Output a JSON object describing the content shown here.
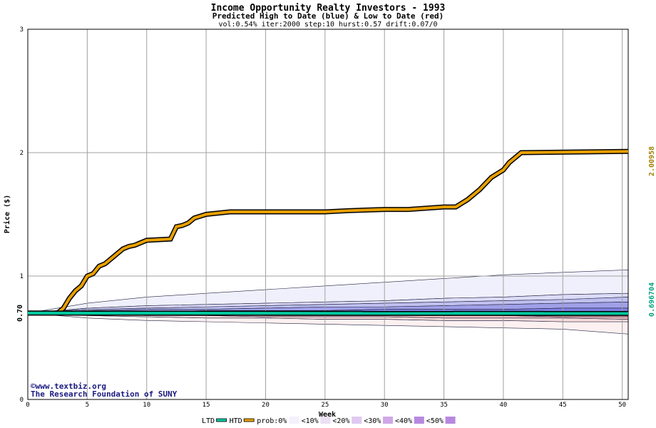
{
  "chart_data": {
    "type": "line",
    "title": "Income Opportunity Realty Investors - 1993",
    "subtitle": "Predicted High to Date (blue) &  Low to Date (red)",
    "params": "vol:0.54% iter:2000 step:10 hurst:0.57 drift:0.07/0",
    "xlabel": "Week",
    "ylabel": "Price ($)",
    "xlim": [
      0,
      50.5
    ],
    "ylim": [
      0,
      3
    ],
    "x_ticks": [
      0,
      5,
      10,
      15,
      20,
      25,
      30,
      35,
      40,
      45,
      50
    ],
    "y_ticks": [
      0,
      1,
      2,
      3
    ],
    "grid": true,
    "start_label": "0.70",
    "right_labels": {
      "top": "2.00958",
      "bottom": "0.696704"
    },
    "credits": [
      "©www.textbiz.org",
      "The Research Foundation of SUNY"
    ],
    "legend": {
      "items": [
        "LTD",
        "HTD",
        "prob:0%",
        "<10%",
        "<20%",
        "<30%",
        "<40%",
        "<50%"
      ],
      "placement": "bottom"
    },
    "colors": {
      "htd": "#e8a000",
      "ltd": "#00c8a0",
      "band_high": [
        "#f0f0fc",
        "#dcdcf8",
        "#c0c0f0",
        "#a0a0e8",
        "#8080e0"
      ],
      "band_low": [
        "#fcf0f0",
        "#f8dcdc",
        "#f0c0c0",
        "#e8a0a0",
        "#e08080"
      ],
      "grid": "#a0a0a0"
    },
    "series": [
      {
        "name": "HTD",
        "x": [
          0,
          2.5,
          3,
          3.5,
          4,
          4.5,
          5,
          5.5,
          6,
          6.5,
          7,
          7.5,
          8,
          8.5,
          9,
          9.5,
          10,
          12,
          12.5,
          13,
          13.5,
          14,
          15,
          17,
          20,
          25,
          27,
          30,
          32,
          35,
          35.5,
          36,
          37,
          38,
          39,
          40,
          40.5,
          41,
          41.5,
          50.5
        ],
        "y": [
          0.7,
          0.7,
          0.74,
          0.82,
          0.88,
          0.92,
          1.0,
          1.02,
          1.08,
          1.1,
          1.14,
          1.18,
          1.22,
          1.24,
          1.25,
          1.27,
          1.29,
          1.3,
          1.4,
          1.41,
          1.43,
          1.47,
          1.5,
          1.52,
          1.52,
          1.52,
          1.53,
          1.54,
          1.54,
          1.56,
          1.56,
          1.56,
          1.62,
          1.7,
          1.8,
          1.86,
          1.92,
          1.96,
          2.0,
          2.01
        ]
      },
      {
        "name": "LTD",
        "x": [
          0,
          50.5
        ],
        "y": [
          0.7,
          0.697
        ]
      }
    ],
    "bands": {
      "x": [
        0,
        5,
        10,
        15,
        20,
        25,
        30,
        35,
        40,
        45,
        50.5
      ],
      "upper": [
        [
          0.7,
          0.78,
          0.83,
          0.86,
          0.89,
          0.92,
          0.95,
          0.98,
          1.01,
          1.03,
          1.05
        ],
        [
          0.7,
          0.74,
          0.76,
          0.77,
          0.78,
          0.79,
          0.8,
          0.82,
          0.83,
          0.85,
          0.86
        ],
        [
          0.7,
          0.73,
          0.74,
          0.75,
          0.76,
          0.77,
          0.78,
          0.79,
          0.8,
          0.81,
          0.83
        ],
        [
          0.7,
          0.72,
          0.73,
          0.73,
          0.74,
          0.75,
          0.75,
          0.76,
          0.77,
          0.78,
          0.79
        ],
        [
          0.7,
          0.71,
          0.71,
          0.72,
          0.72,
          0.72,
          0.73,
          0.73,
          0.73,
          0.74,
          0.74
        ]
      ],
      "lower": [
        [
          0.7,
          0.66,
          0.64,
          0.63,
          0.62,
          0.61,
          0.6,
          0.59,
          0.58,
          0.57,
          0.53
        ],
        [
          0.7,
          0.68,
          0.67,
          0.66,
          0.66,
          0.65,
          0.65,
          0.64,
          0.64,
          0.63,
          0.63
        ],
        [
          0.7,
          0.69,
          0.68,
          0.68,
          0.67,
          0.67,
          0.67,
          0.66,
          0.66,
          0.66,
          0.65
        ],
        [
          0.7,
          0.69,
          0.69,
          0.69,
          0.68,
          0.68,
          0.68,
          0.68,
          0.68,
          0.67,
          0.67
        ],
        [
          0.7,
          0.7,
          0.69,
          0.69,
          0.69,
          0.69,
          0.69,
          0.69,
          0.69,
          0.69,
          0.68
        ]
      ]
    }
  }
}
